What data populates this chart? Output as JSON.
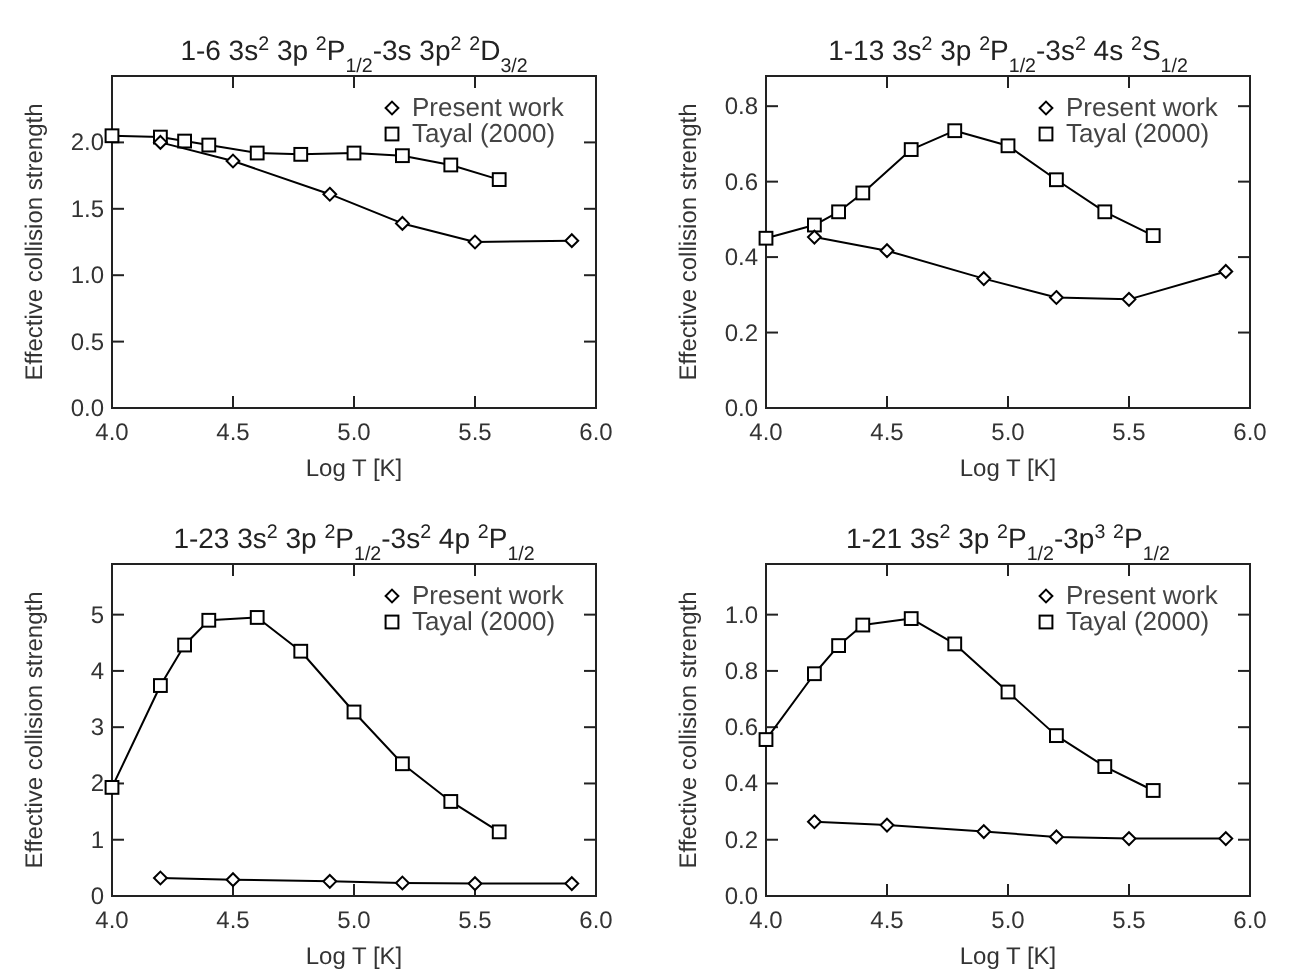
{
  "chart_data": [
    {
      "type": "line",
      "title": "1-6 3s$^{2}$ 3p $^{2}$P$_{1/2}$-3s 3p$^{2}$ $^{2}$D$_{3/2}$",
      "xlabel": "Log T [K]",
      "ylabel": "Effective collision strength",
      "xlim": [
        4,
        6
      ],
      "ylim": [
        0,
        2.5
      ],
      "xticks": [
        {
          "value": 4,
          "label": "4.0"
        },
        {
          "value": 4.5,
          "label": "4.5"
        },
        {
          "value": 5,
          "label": "5.0"
        },
        {
          "value": 5.5,
          "label": "5.5"
        },
        {
          "value": 6,
          "label": "6.0"
        }
      ],
      "yticks": [
        {
          "value": 0,
          "label": "0.0"
        },
        {
          "value": 0.5,
          "label": "0.5"
        },
        {
          "value": 1,
          "label": "1.0"
        },
        {
          "value": 1.5,
          "label": "1.5"
        },
        {
          "value": 2,
          "label": "2.0"
        }
      ],
      "legend": "top right",
      "grid": false,
      "series": [
        {
          "name": "Present work",
          "color": "#000000",
          "marker": "diamond",
          "x": [
            4.2,
            4.5,
            4.9,
            5.2,
            5.5,
            5.9
          ],
          "values": [
            2.0,
            1.86,
            1.61,
            1.39,
            1.25,
            1.26
          ]
        },
        {
          "name": "Tayal (2000)",
          "color": "#000000",
          "marker": "square",
          "x": [
            4.0,
            4.2,
            4.3,
            4.4,
            4.6,
            4.78,
            5.0,
            5.2,
            5.4,
            5.6
          ],
          "values": [
            2.05,
            2.04,
            2.01,
            1.98,
            1.92,
            1.91,
            1.92,
            1.9,
            1.83,
            1.72
          ]
        }
      ]
    },
    {
      "type": "line",
      "title": "1-13 3s$^{2}$ 3p $^{2}$P$_{1/2}$-3s$^{2}$ 4s $^{2}$S$_{1/2}$",
      "xlabel": "Log T [K]",
      "ylabel": "Effective collision strength",
      "xlim": [
        4,
        6
      ],
      "ylim": [
        0,
        0.88
      ],
      "xticks": [
        {
          "value": 4,
          "label": "4.0"
        },
        {
          "value": 4.5,
          "label": "4.5"
        },
        {
          "value": 5,
          "label": "5.0"
        },
        {
          "value": 5.5,
          "label": "5.5"
        },
        {
          "value": 6,
          "label": "6.0"
        }
      ],
      "yticks": [
        {
          "value": 0,
          "label": "0.0"
        },
        {
          "value": 0.2,
          "label": "0.2"
        },
        {
          "value": 0.4,
          "label": "0.4"
        },
        {
          "value": 0.6,
          "label": "0.6"
        },
        {
          "value": 0.8,
          "label": "0.8"
        }
      ],
      "legend": "top right",
      "grid": false,
      "series": [
        {
          "name": "Present work",
          "color": "#000000",
          "marker": "diamond",
          "x": [
            4.2,
            4.5,
            4.9,
            5.2,
            5.5,
            5.9
          ],
          "values": [
            0.453,
            0.417,
            0.343,
            0.293,
            0.288,
            0.362
          ]
        },
        {
          "name": "Tayal (2000)",
          "color": "#000000",
          "marker": "square",
          "x": [
            4.0,
            4.2,
            4.3,
            4.4,
            4.6,
            4.78,
            5.0,
            5.2,
            5.4,
            5.6
          ],
          "values": [
            0.45,
            0.485,
            0.52,
            0.57,
            0.685,
            0.735,
            0.695,
            0.605,
            0.52,
            0.457
          ]
        }
      ]
    },
    {
      "type": "line",
      "title": "1-23 3s$^{2}$ 3p $^{2}$P$_{1/2}$-3s$^{2}$ 4p $^{2}$P$_{1/2}$",
      "xlabel": "Log T [K]",
      "ylabel": "Effective collision strength",
      "xlim": [
        4,
        6
      ],
      "ylim": [
        0,
        5.9
      ],
      "xticks": [
        {
          "value": 4,
          "label": "4.0"
        },
        {
          "value": 4.5,
          "label": "4.5"
        },
        {
          "value": 5,
          "label": "5.0"
        },
        {
          "value": 5.5,
          "label": "5.5"
        },
        {
          "value": 6,
          "label": "6.0"
        }
      ],
      "yticks": [
        0,
        1,
        2,
        3,
        4,
        5
      ],
      "legend": "top right",
      "grid": false,
      "series": [
        {
          "name": "Present work",
          "color": "#000000",
          "marker": "diamond",
          "x": [
            4.2,
            4.5,
            4.9,
            5.2,
            5.5,
            5.9
          ],
          "values": [
            0.32,
            0.29,
            0.26,
            0.23,
            0.22,
            0.22
          ]
        },
        {
          "name": "Tayal (2000)",
          "color": "#000000",
          "marker": "square",
          "x": [
            4.0,
            4.2,
            4.3,
            4.4,
            4.6,
            4.78,
            5.0,
            5.2,
            5.4,
            5.6
          ],
          "values": [
            1.93,
            3.74,
            4.46,
            4.9,
            4.95,
            4.35,
            3.27,
            2.35,
            1.68,
            1.14
          ]
        }
      ]
    },
    {
      "type": "line",
      "title": "1-21 3s$^{2}$ 3p $^{2}$P$_{1/2}$-3p$^{3}$ $^{2}$P$_{1/2}$",
      "xlabel": "Log T [K]",
      "ylabel": "Effective collision strength",
      "xlim": [
        4,
        6
      ],
      "ylim": [
        0,
        1.18
      ],
      "xticks": [
        {
          "value": 4,
          "label": "4.0"
        },
        {
          "value": 4.5,
          "label": "4.5"
        },
        {
          "value": 5,
          "label": "5.0"
        },
        {
          "value": 5.5,
          "label": "5.5"
        },
        {
          "value": 6,
          "label": "6.0"
        }
      ],
      "yticks": [
        {
          "value": 0,
          "label": "0.0"
        },
        {
          "value": 0.2,
          "label": "0.2"
        },
        {
          "value": 0.4,
          "label": "0.4"
        },
        {
          "value": 0.6,
          "label": "0.6"
        },
        {
          "value": 0.8,
          "label": "0.8"
        },
        {
          "value": 1,
          "label": "1.0"
        }
      ],
      "legend": "top right",
      "grid": false,
      "series": [
        {
          "name": "Present work",
          "color": "#000000",
          "marker": "diamond",
          "x": [
            4.2,
            4.5,
            4.9,
            5.2,
            5.5,
            5.9
          ],
          "values": [
            0.264,
            0.252,
            0.229,
            0.21,
            0.204,
            0.204
          ]
        },
        {
          "name": "Tayal (2000)",
          "color": "#000000",
          "marker": "square",
          "x": [
            4.0,
            4.2,
            4.3,
            4.4,
            4.6,
            4.78,
            5.0,
            5.2,
            5.4,
            5.6
          ],
          "values": [
            0.556,
            0.79,
            0.89,
            0.963,
            0.986,
            0.896,
            0.725,
            0.57,
            0.46,
            0.375
          ]
        }
      ]
    }
  ]
}
